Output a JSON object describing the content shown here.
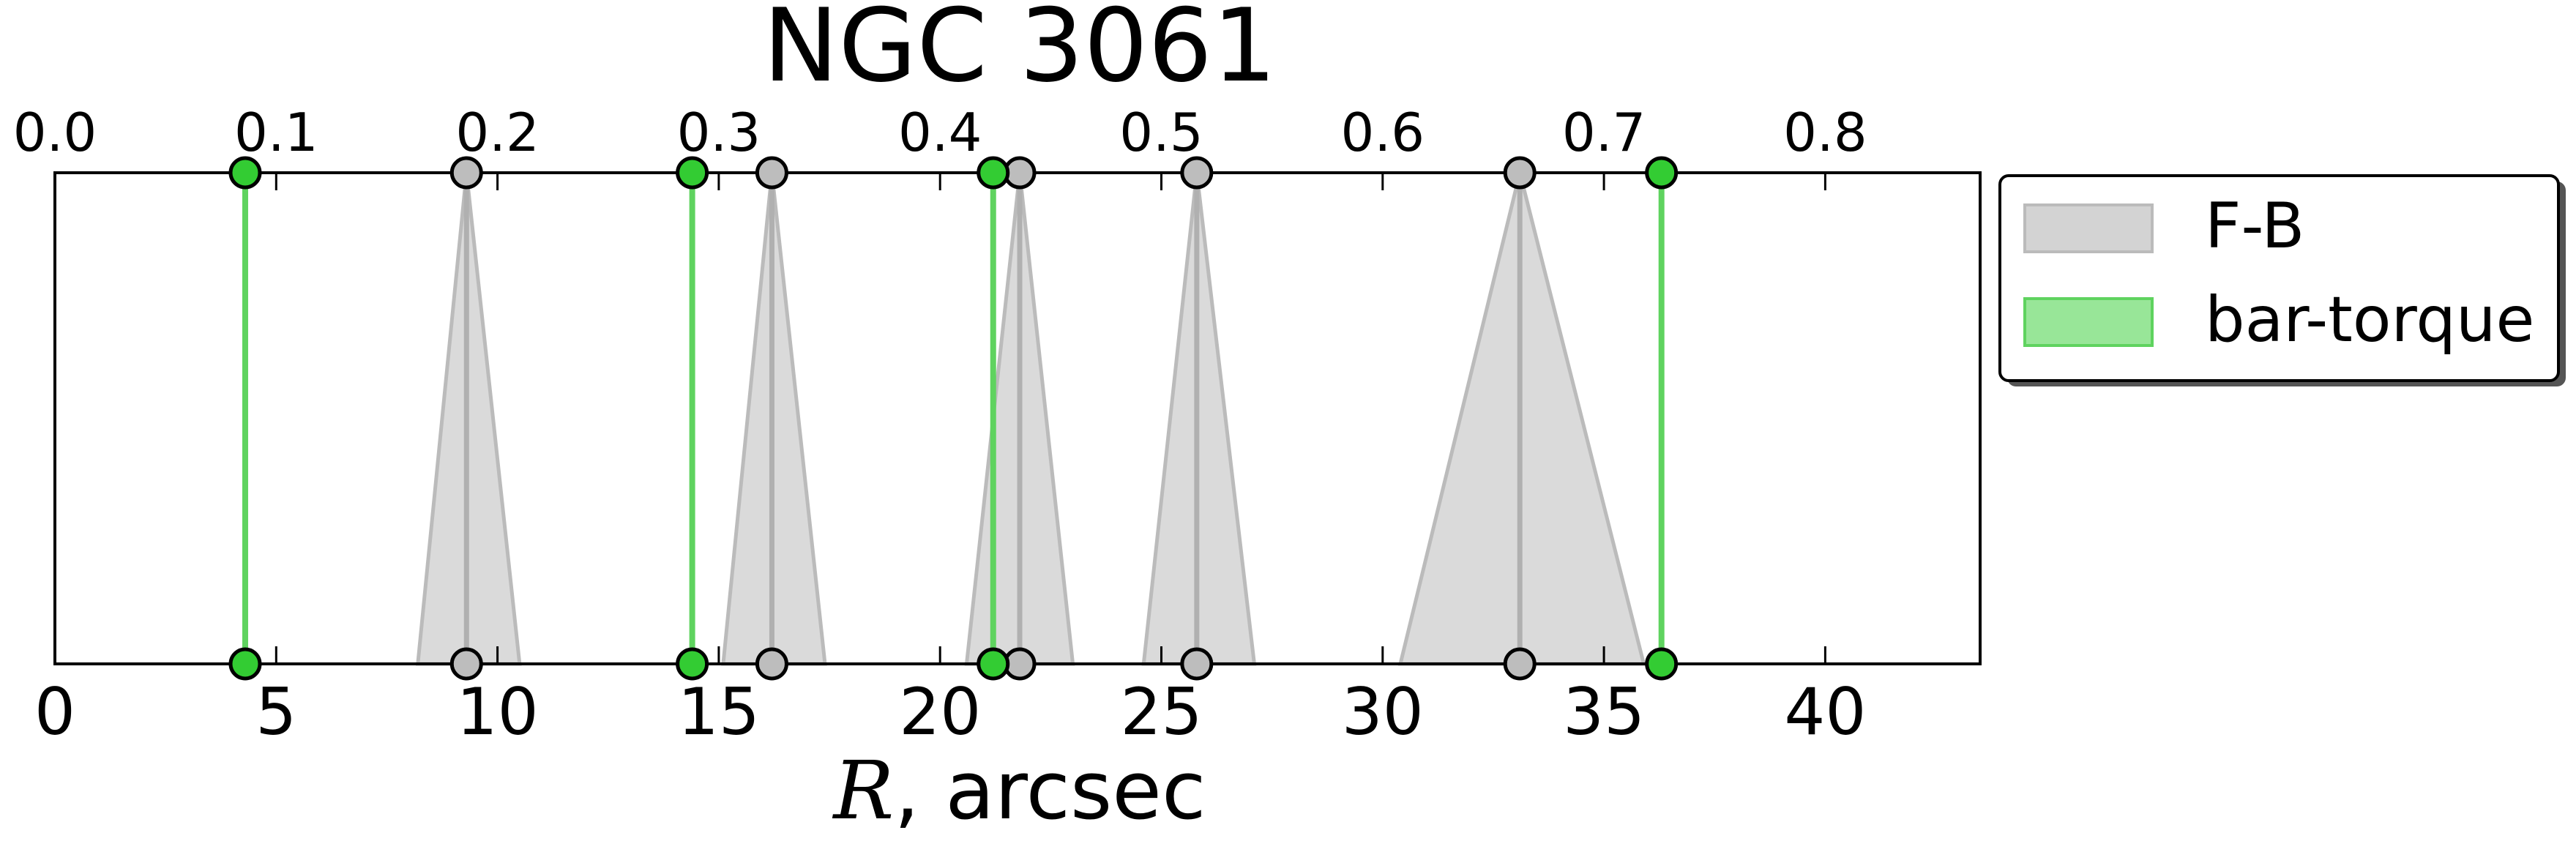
{
  "chart_data": {
    "type": "scatter",
    "title": "NGC 3061",
    "xlabel_italic": "R",
    "xlabel_rest": ", arcsec",
    "xlim": [
      0,
      43.5
    ],
    "bottom_ticks": [
      0,
      5,
      10,
      15,
      20,
      25,
      30,
      35,
      40
    ],
    "top_axis": {
      "xlim": [
        0,
        0.87
      ],
      "ticks": [
        "0.0",
        "0.1",
        "0.2",
        "0.3",
        "0.4",
        "0.5",
        "0.6",
        "0.7",
        "0.8"
      ],
      "tick_values": [
        0.0,
        0.1,
        0.2,
        0.3,
        0.4,
        0.5,
        0.6,
        0.7,
        0.8
      ]
    },
    "legend_position": "outside-right-top",
    "series": [
      {
        "name": "F-B",
        "color": "#bbbbbb",
        "fill": "#d3d3d3",
        "points": [
          {
            "r": 9.3,
            "low": 8.2,
            "high": 10.5
          },
          {
            "r": 16.2,
            "low": 15.1,
            "high": 17.4
          },
          {
            "r": 21.8,
            "low": 20.6,
            "high": 23.0
          },
          {
            "r": 25.8,
            "low": 24.6,
            "high": 27.1
          },
          {
            "r": 33.1,
            "low": 30.4,
            "high": 35.9
          }
        ]
      },
      {
        "name": "bar-torque",
        "color": "#5fd35f",
        "fill": "#98e698",
        "marker_fill": "#33cc33",
        "points": [
          {
            "r": 4.3
          },
          {
            "r": 14.4
          },
          {
            "r": 21.2
          },
          {
            "r": 36.3
          }
        ]
      }
    ]
  }
}
